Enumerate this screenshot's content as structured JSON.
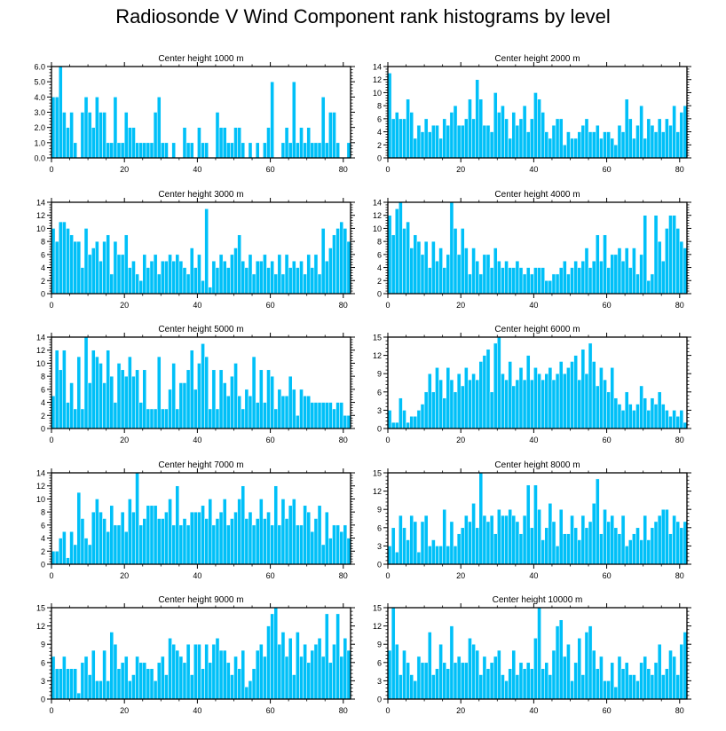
{
  "title": "Radiosonde V Wind Component rank histograms by level",
  "colors": {
    "bar": "#00C0F8",
    "bar_edge": "#ffffff",
    "axis": "#000000"
  },
  "chart_data": [
    {
      "type": "bar",
      "title": "Center height 1000 m",
      "xlim": [
        0,
        82
      ],
      "ylim": [
        0,
        6
      ],
      "xticks": [
        0,
        20,
        40,
        60,
        80
      ],
      "yticks": [
        0,
        1,
        2,
        3,
        4,
        5,
        6
      ],
      "ytick_labels": [
        "0.0",
        "1.0",
        "2.0",
        "3.0",
        "4.0",
        "5.0",
        "6.0"
      ],
      "values": [
        4,
        4,
        6,
        3,
        2,
        3,
        1,
        0,
        3,
        4,
        3,
        2,
        4,
        3,
        3,
        1,
        1,
        4,
        1,
        1,
        3,
        2,
        2,
        1,
        1,
        1,
        1,
        1,
        3,
        4,
        1,
        1,
        0,
        1,
        0,
        0,
        2,
        1,
        1,
        0,
        2,
        1,
        1,
        0,
        0,
        3,
        2,
        2,
        1,
        1,
        2,
        2,
        1,
        0,
        1,
        0,
        1,
        0,
        1,
        2,
        5,
        0,
        0,
        1,
        2,
        1,
        5,
        1,
        2,
        1,
        2,
        1,
        1,
        1,
        4,
        1,
        3,
        3,
        1,
        0,
        0,
        1
      ]
    },
    {
      "type": "bar",
      "title": "Center height 2000 m",
      "xlim": [
        0,
        82
      ],
      "ylim": [
        0,
        14
      ],
      "xticks": [
        0,
        20,
        40,
        60,
        80
      ],
      "yticks": [
        0,
        2,
        4,
        6,
        8,
        10,
        12,
        14
      ],
      "ytick_labels": [
        "0",
        "2",
        "4",
        "6",
        "8",
        "10",
        "12",
        "14"
      ],
      "values": [
        13,
        6,
        7,
        6,
        6,
        9,
        7,
        3,
        5,
        4,
        6,
        4,
        5,
        5,
        3,
        6,
        5,
        7,
        8,
        5,
        5,
        6,
        9,
        6,
        12,
        9,
        5,
        5,
        4,
        10,
        7,
        8,
        6,
        3,
        7,
        5,
        6,
        8,
        4,
        6,
        10,
        9,
        7,
        4,
        3,
        5,
        6,
        6,
        2,
        4,
        3,
        3,
        4,
        5,
        6,
        4,
        4,
        5,
        3,
        4,
        4,
        3,
        2,
        5,
        4,
        9,
        6,
        3,
        5,
        8,
        3,
        6,
        5,
        4,
        6,
        4,
        6,
        5,
        8,
        4,
        7,
        8
      ]
    },
    {
      "type": "bar",
      "title": "Center height 3000 m",
      "xlim": [
        0,
        82
      ],
      "ylim": [
        0,
        14
      ],
      "xticks": [
        0,
        20,
        40,
        60,
        80
      ],
      "yticks": [
        0,
        2,
        4,
        6,
        8,
        10,
        12,
        14
      ],
      "ytick_labels": [
        "0",
        "2",
        "4",
        "6",
        "8",
        "10",
        "12",
        "14"
      ],
      "values": [
        10,
        8,
        11,
        11,
        10,
        9,
        8,
        8,
        4,
        10,
        6,
        7,
        8,
        5,
        8,
        9,
        3,
        8,
        6,
        6,
        9,
        4,
        5,
        3,
        2,
        6,
        4,
        5,
        6,
        3,
        5,
        5,
        6,
        5,
        6,
        5,
        4,
        3,
        7,
        4,
        6,
        2,
        13,
        1,
        5,
        4,
        6,
        5,
        4,
        6,
        7,
        9,
        5,
        4,
        6,
        3,
        5,
        5,
        6,
        4,
        5,
        3,
        6,
        3,
        6,
        4,
        5,
        4,
        5,
        3,
        6,
        4,
        6,
        3,
        10,
        5,
        7,
        9,
        10,
        11,
        10,
        8
      ]
    },
    {
      "type": "bar",
      "title": "Center height 4000 m",
      "xlim": [
        0,
        82
      ],
      "ylim": [
        0,
        14
      ],
      "xticks": [
        0,
        20,
        40,
        60,
        80
      ],
      "yticks": [
        0,
        2,
        4,
        6,
        8,
        10,
        12,
        14
      ],
      "ytick_labels": [
        "0",
        "2",
        "4",
        "6",
        "8",
        "10",
        "12",
        "14"
      ],
      "values": [
        12,
        9,
        13,
        14,
        10,
        11,
        7,
        9,
        8,
        6,
        8,
        4,
        8,
        5,
        7,
        4,
        6,
        14,
        10,
        6,
        10,
        7,
        3,
        7,
        5,
        3,
        6,
        6,
        4,
        7,
        5,
        4,
        5,
        4,
        4,
        5,
        4,
        3,
        4,
        3,
        4,
        4,
        4,
        2,
        2,
        3,
        3,
        4,
        5,
        3,
        4,
        5,
        4,
        5,
        7,
        4,
        5,
        9,
        5,
        9,
        4,
        6,
        6,
        7,
        5,
        7,
        4,
        7,
        3,
        6,
        12,
        2,
        3,
        12,
        8,
        5,
        10,
        12,
        12,
        10,
        8,
        7
      ]
    },
    {
      "type": "bar",
      "title": "Center height 5000 m",
      "xlim": [
        0,
        82
      ],
      "ylim": [
        0,
        14
      ],
      "xticks": [
        0,
        20,
        40,
        60,
        80
      ],
      "yticks": [
        0,
        2,
        4,
        6,
        8,
        10,
        12,
        14
      ],
      "ytick_labels": [
        "0",
        "2",
        "4",
        "6",
        "8",
        "10",
        "12",
        "14"
      ],
      "values": [
        5,
        12,
        9,
        12,
        4,
        7,
        3,
        11,
        3,
        14,
        7,
        12,
        11,
        10,
        7,
        12,
        8,
        4,
        10,
        9,
        8,
        11,
        8,
        9,
        4,
        9,
        3,
        3,
        3,
        11,
        3,
        3,
        6,
        10,
        3,
        7,
        7,
        9,
        12,
        6,
        10,
        13,
        11,
        3,
        9,
        3,
        9,
        7,
        5,
        8,
        10,
        5,
        3,
        6,
        5,
        11,
        4,
        9,
        4,
        9,
        8,
        3,
        6,
        5,
        5,
        8,
        6,
        2,
        6,
        5,
        5,
        4,
        4,
        4,
        4,
        4,
        4,
        3,
        4,
        4,
        2,
        2
      ]
    },
    {
      "type": "bar",
      "title": "Center height 6000 m",
      "xlim": [
        0,
        82
      ],
      "ylim": [
        0,
        15
      ],
      "xticks": [
        0,
        20,
        40,
        60,
        80
      ],
      "yticks": [
        0,
        3,
        6,
        9,
        12,
        15
      ],
      "ytick_labels": [
        "0",
        "3",
        "6",
        "9",
        "12",
        "15"
      ],
      "values": [
        3,
        1,
        1,
        5,
        3,
        1,
        2,
        2,
        3,
        4,
        6,
        9,
        6,
        10,
        8,
        5,
        10,
        8,
        6,
        9,
        7,
        10,
        8,
        9,
        8,
        11,
        12,
        13,
        6,
        14,
        15,
        9,
        8,
        11,
        7,
        8,
        10,
        8,
        12,
        8,
        10,
        9,
        8,
        9,
        10,
        8,
        9,
        11,
        9,
        10,
        11,
        12,
        8,
        13,
        9,
        14,
        11,
        7,
        10,
        8,
        6,
        10,
        5,
        4,
        3,
        6,
        4,
        3,
        4,
        7,
        5,
        3,
        5,
        4,
        6,
        4,
        3,
        2,
        3,
        2,
        3,
        1
      ]
    },
    {
      "type": "bar",
      "title": "Center height 7000 m",
      "xlim": [
        0,
        82
      ],
      "ylim": [
        0,
        14
      ],
      "xticks": [
        0,
        20,
        40,
        60,
        80
      ],
      "yticks": [
        0,
        2,
        4,
        6,
        8,
        10,
        12,
        14
      ],
      "ytick_labels": [
        "0",
        "2",
        "4",
        "6",
        "8",
        "10",
        "12",
        "14"
      ],
      "values": [
        2,
        2,
        4,
        5,
        1,
        5,
        3,
        11,
        7,
        4,
        3,
        8,
        10,
        8,
        7,
        5,
        9,
        6,
        6,
        8,
        5,
        10,
        8,
        14,
        6,
        7,
        9,
        9,
        9,
        7,
        7,
        8,
        10,
        6,
        12,
        6,
        7,
        6,
        8,
        8,
        8,
        9,
        7,
        10,
        6,
        7,
        8,
        10,
        6,
        7,
        8,
        10,
        12,
        7,
        8,
        6,
        7,
        10,
        7,
        8,
        6,
        12,
        6,
        10,
        7,
        9,
        10,
        6,
        6,
        9,
        8,
        5,
        7,
        9,
        3,
        8,
        4,
        6,
        6,
        5,
        6,
        4
      ]
    },
    {
      "type": "bar",
      "title": "Center height 8000 m",
      "xlim": [
        0,
        82
      ],
      "ylim": [
        0,
        15
      ],
      "xticks": [
        0,
        20,
        40,
        60,
        80
      ],
      "yticks": [
        0,
        3,
        6,
        9,
        12,
        15
      ],
      "ytick_labels": [
        "0",
        "3",
        "6",
        "9",
        "12",
        "15"
      ],
      "values": [
        3,
        6,
        2,
        8,
        6,
        4,
        8,
        7,
        2,
        7,
        8,
        3,
        4,
        3,
        3,
        9,
        3,
        7,
        3,
        5,
        6,
        8,
        7,
        10,
        6,
        15,
        8,
        7,
        8,
        5,
        9,
        8,
        8,
        9,
        8,
        7,
        5,
        8,
        13,
        6,
        13,
        9,
        4,
        6,
        10,
        7,
        3,
        9,
        5,
        5,
        8,
        6,
        4,
        8,
        6,
        7,
        10,
        14,
        5,
        9,
        7,
        8,
        6,
        5,
        8,
        3,
        4,
        5,
        6,
        4,
        8,
        4,
        6,
        7,
        8,
        9,
        9,
        5,
        8,
        7,
        6,
        7
      ]
    },
    {
      "type": "bar",
      "title": "Center height 9000 m",
      "xlim": [
        0,
        82
      ],
      "ylim": [
        0,
        15
      ],
      "xticks": [
        0,
        20,
        40,
        60,
        80
      ],
      "yticks": [
        0,
        3,
        6,
        9,
        12,
        15
      ],
      "ytick_labels": [
        "0",
        "3",
        "6",
        "9",
        "12",
        "15"
      ],
      "values": [
        7,
        5,
        5,
        7,
        5,
        5,
        5,
        1,
        6,
        7,
        4,
        8,
        3,
        3,
        8,
        3,
        11,
        9,
        5,
        6,
        7,
        3,
        4,
        7,
        6,
        6,
        5,
        5,
        3,
        6,
        7,
        4,
        10,
        9,
        8,
        7,
        6,
        9,
        4,
        9,
        9,
        5,
        9,
        6,
        9,
        10,
        8,
        8,
        6,
        4,
        7,
        5,
        8,
        2,
        3,
        5,
        8,
        9,
        7,
        12,
        14,
        15,
        9,
        11,
        7,
        10,
        4,
        11,
        7,
        9,
        6,
        8,
        9,
        10,
        7,
        14,
        6,
        9,
        14,
        7,
        10,
        8
      ]
    },
    {
      "type": "bar",
      "title": "Center height 10000 m",
      "xlim": [
        0,
        82
      ],
      "ylim": [
        0,
        15
      ],
      "xticks": [
        0,
        20,
        40,
        60,
        80
      ],
      "yticks": [
        0,
        3,
        6,
        9,
        12,
        15
      ],
      "ytick_labels": [
        "0",
        "3",
        "6",
        "9",
        "12",
        "15"
      ],
      "values": [
        8,
        15,
        9,
        4,
        8,
        6,
        4,
        3,
        7,
        6,
        6,
        11,
        4,
        5,
        9,
        6,
        5,
        12,
        6,
        7,
        6,
        6,
        10,
        9,
        8,
        4,
        7,
        5,
        6,
        7,
        8,
        4,
        3,
        5,
        8,
        4,
        6,
        5,
        6,
        5,
        10,
        15,
        5,
        6,
        4,
        8,
        12,
        13,
        7,
        9,
        3,
        6,
        10,
        4,
        11,
        12,
        8,
        5,
        7,
        3,
        3,
        6,
        2,
        7,
        5,
        6,
        4,
        4,
        3,
        6,
        7,
        5,
        4,
        6,
        9,
        4,
        5,
        8,
        7,
        4,
        9,
        11
      ]
    }
  ]
}
